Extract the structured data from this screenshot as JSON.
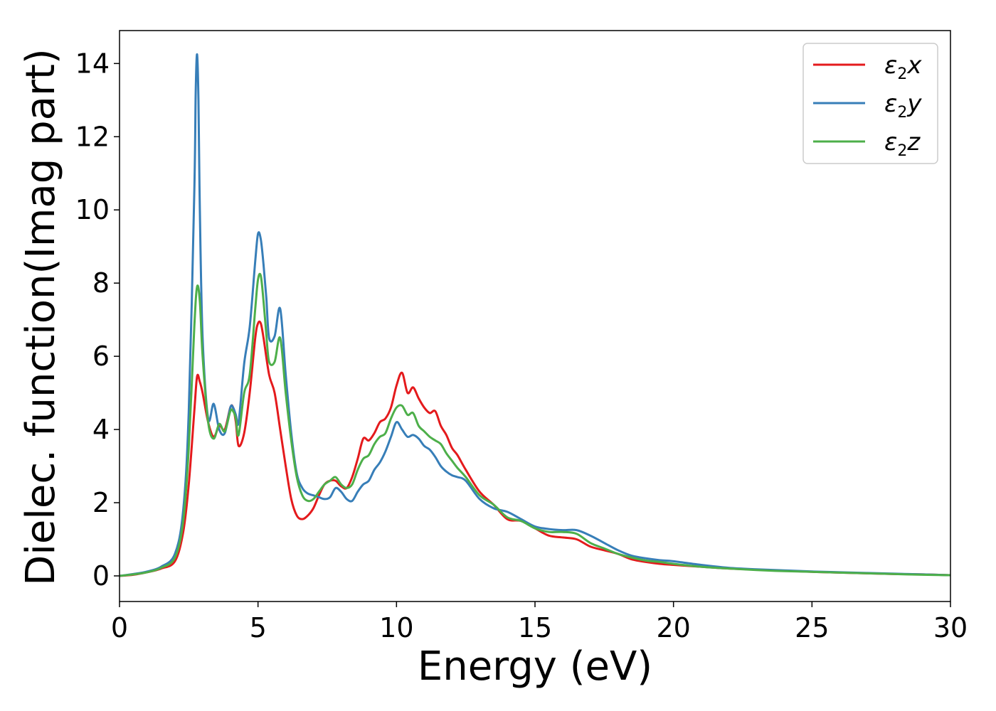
{
  "chart_data": {
    "type": "line",
    "title": "",
    "xlabel": "Energy (eV)",
    "ylabel": "Dielec. function(Imag part)",
    "xlim": [
      0,
      30
    ],
    "ylim": [
      -0.7,
      14.9
    ],
    "xticks": [
      0,
      5,
      10,
      15,
      20,
      25,
      30
    ],
    "yticks": [
      0,
      2,
      4,
      6,
      8,
      10,
      12,
      14
    ],
    "grid": false,
    "legend_position": "top-right",
    "series": [
      {
        "name": "ε2x",
        "legend_base": "ε",
        "legend_sub": "2",
        "legend_var": "x",
        "color": "#e41a1c",
        "x": [
          0,
          0.5,
          1.0,
          1.5,
          2.0,
          2.3,
          2.5,
          2.7,
          2.8,
          2.9,
          3.0,
          3.2,
          3.4,
          3.6,
          3.8,
          4.0,
          4.1,
          4.2,
          4.3,
          4.5,
          4.7,
          4.9,
          5.0,
          5.1,
          5.2,
          5.4,
          5.6,
          5.8,
          6.0,
          6.2,
          6.4,
          6.6,
          6.8,
          7.0,
          7.2,
          7.4,
          7.6,
          7.8,
          8.0,
          8.2,
          8.4,
          8.6,
          8.8,
          9.0,
          9.2,
          9.4,
          9.6,
          9.8,
          10.0,
          10.2,
          10.4,
          10.6,
          10.8,
          11.0,
          11.2,
          11.4,
          11.6,
          11.8,
          12.0,
          12.2,
          12.5,
          13.0,
          13.5,
          14.0,
          14.5,
          15.0,
          15.5,
          16.0,
          16.5,
          17.0,
          17.5,
          18.0,
          18.5,
          19.0,
          19.5,
          20.0,
          21.0,
          22.0,
          23.0,
          24.0,
          25.0,
          26.0,
          27.0,
          28.0,
          29.0,
          30.0
        ],
        "y": [
          0,
          0.03,
          0.1,
          0.2,
          0.4,
          1.2,
          2.5,
          4.5,
          5.45,
          5.3,
          5.0,
          4.2,
          3.8,
          4.1,
          4.0,
          4.6,
          4.6,
          4.2,
          3.55,
          3.9,
          5.0,
          6.5,
          6.9,
          6.9,
          6.5,
          5.5,
          5.0,
          4.0,
          3.0,
          2.1,
          1.65,
          1.55,
          1.65,
          1.85,
          2.2,
          2.5,
          2.6,
          2.6,
          2.45,
          2.4,
          2.7,
          3.2,
          3.75,
          3.7,
          3.9,
          4.2,
          4.3,
          4.6,
          5.2,
          5.55,
          5.0,
          5.15,
          4.85,
          4.6,
          4.45,
          4.5,
          4.1,
          3.85,
          3.5,
          3.3,
          2.9,
          2.3,
          1.95,
          1.55,
          1.5,
          1.3,
          1.1,
          1.05,
          1.0,
          0.8,
          0.7,
          0.6,
          0.45,
          0.38,
          0.33,
          0.3,
          0.25,
          0.2,
          0.17,
          0.14,
          0.11,
          0.09,
          0.07,
          0.05,
          0.04,
          0.02
        ]
      },
      {
        "name": "ε2y",
        "legend_base": "ε",
        "legend_sub": "2",
        "legend_var": "y",
        "color": "#377eb8",
        "x": [
          0,
          0.5,
          1.0,
          1.5,
          2.0,
          2.3,
          2.5,
          2.7,
          2.75,
          2.8,
          2.85,
          2.9,
          3.0,
          3.2,
          3.4,
          3.6,
          3.8,
          4.0,
          4.1,
          4.2,
          4.3,
          4.5,
          4.7,
          4.9,
          5.0,
          5.1,
          5.2,
          5.3,
          5.4,
          5.6,
          5.8,
          6.0,
          6.2,
          6.4,
          6.6,
          6.8,
          7.0,
          7.2,
          7.4,
          7.6,
          7.8,
          8.0,
          8.2,
          8.4,
          8.6,
          8.8,
          9.0,
          9.2,
          9.4,
          9.6,
          9.8,
          10.0,
          10.2,
          10.4,
          10.6,
          10.8,
          11.0,
          11.2,
          11.4,
          11.6,
          11.8,
          12.0,
          12.2,
          12.5,
          13.0,
          13.5,
          14.0,
          14.5,
          15.0,
          15.5,
          16.0,
          16.5,
          17.0,
          17.5,
          18.0,
          18.5,
          19.0,
          19.5,
          20.0,
          21.0,
          22.0,
          23.0,
          24.0,
          25.0,
          26.0,
          27.0,
          28.0,
          29.0,
          30.0
        ],
        "y": [
          0,
          0.05,
          0.12,
          0.25,
          0.6,
          1.8,
          4.5,
          10.5,
          13.2,
          14.25,
          13.0,
          10.0,
          6.5,
          4.3,
          4.7,
          4.0,
          3.9,
          4.6,
          4.6,
          4.4,
          4.2,
          5.8,
          6.8,
          8.6,
          9.35,
          9.2,
          8.5,
          7.6,
          6.5,
          6.55,
          7.3,
          5.5,
          3.9,
          2.8,
          2.4,
          2.25,
          2.2,
          2.15,
          2.1,
          2.15,
          2.4,
          2.3,
          2.1,
          2.05,
          2.3,
          2.5,
          2.6,
          2.9,
          3.1,
          3.4,
          3.8,
          4.2,
          4.0,
          3.8,
          3.85,
          3.75,
          3.55,
          3.45,
          3.25,
          3.0,
          2.85,
          2.75,
          2.7,
          2.6,
          2.1,
          1.85,
          1.75,
          1.55,
          1.35,
          1.28,
          1.25,
          1.25,
          1.1,
          0.9,
          0.7,
          0.55,
          0.48,
          0.43,
          0.4,
          0.3,
          0.22,
          0.18,
          0.15,
          0.12,
          0.1,
          0.08,
          0.06,
          0.04,
          0.02
        ]
      },
      {
        "name": "ε2z",
        "legend_base": "ε",
        "legend_sub": "2",
        "legend_var": "z",
        "color": "#4daf4a",
        "x": [
          0,
          0.5,
          1.0,
          1.5,
          2.0,
          2.3,
          2.5,
          2.7,
          2.8,
          2.9,
          3.0,
          3.2,
          3.4,
          3.6,
          3.8,
          4.0,
          4.1,
          4.2,
          4.3,
          4.5,
          4.7,
          4.9,
          5.0,
          5.1,
          5.2,
          5.3,
          5.4,
          5.6,
          5.8,
          6.0,
          6.2,
          6.4,
          6.6,
          6.8,
          7.0,
          7.2,
          7.4,
          7.6,
          7.8,
          8.0,
          8.2,
          8.4,
          8.6,
          8.8,
          9.0,
          9.2,
          9.4,
          9.6,
          9.8,
          10.0,
          10.2,
          10.4,
          10.6,
          10.8,
          11.0,
          11.2,
          11.4,
          11.6,
          11.8,
          12.0,
          12.2,
          12.5,
          13.0,
          13.5,
          14.0,
          14.5,
          15.0,
          15.5,
          16.0,
          16.5,
          17.0,
          17.5,
          18.0,
          18.5,
          19.0,
          19.5,
          20.0,
          21.0,
          22.0,
          23.0,
          24.0,
          25.0,
          26.0,
          27.0,
          28.0,
          29.0,
          30.0
        ],
        "y": [
          0,
          0.04,
          0.1,
          0.22,
          0.5,
          1.5,
          3.5,
          6.8,
          7.9,
          7.5,
          6.0,
          4.2,
          3.75,
          4.15,
          3.95,
          4.5,
          4.5,
          4.3,
          3.85,
          5.0,
          5.5,
          7.3,
          8.1,
          8.2,
          7.5,
          6.6,
          5.85,
          5.85,
          6.5,
          5.0,
          3.7,
          2.7,
          2.2,
          2.05,
          2.1,
          2.3,
          2.5,
          2.6,
          2.7,
          2.5,
          2.4,
          2.5,
          2.9,
          3.2,
          3.3,
          3.6,
          3.8,
          3.9,
          4.3,
          4.6,
          4.65,
          4.4,
          4.45,
          4.1,
          3.95,
          3.8,
          3.7,
          3.6,
          3.35,
          3.15,
          2.95,
          2.7,
          2.2,
          1.95,
          1.6,
          1.5,
          1.3,
          1.2,
          1.2,
          1.15,
          0.9,
          0.75,
          0.6,
          0.5,
          0.42,
          0.38,
          0.33,
          0.25,
          0.2,
          0.16,
          0.13,
          0.11,
          0.09,
          0.07,
          0.05,
          0.03,
          0.02
        ]
      }
    ]
  }
}
